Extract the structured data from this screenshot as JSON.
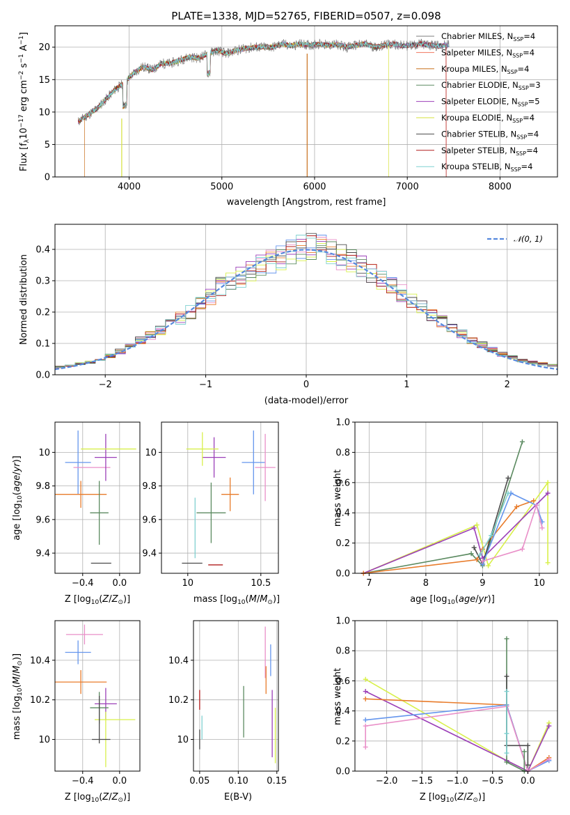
{
  "chart_data": [
    {
      "type": "line",
      "title": "PLATE=1338, MJD=52765, FIBERID=0507, z=0.098",
      "xlabel": "wavelength [Angstrom, rest frame]",
      "ylabel": "Flux [f_λ10^-17 erg cm^-2 s^-1 A^-1]",
      "xlim": [
        3200,
        8620
      ],
      "ylim": [
        0,
        23.3
      ],
      "xticks": [
        4000,
        5000,
        6000,
        7000,
        8000
      ],
      "yticks": [
        0,
        5,
        10,
        15,
        20
      ],
      "legend_position": "right",
      "series": [
        {
          "name": "Chabrier MILES, N_SSP=4",
          "color": "#7e7e7e"
        },
        {
          "name": "Salpeter MILES, N_SSP=4",
          "color": "#f1755e"
        },
        {
          "name": "Kroupa MILES, N_SSP=4",
          "color": "#c9711d"
        },
        {
          "name": "Chabrier ELODIE, N_SSP=3",
          "color": "#5b8a60"
        },
        {
          "name": "Salpeter ELODIE, N_SSP=5",
          "color": "#9b3fb8"
        },
        {
          "name": "Kroupa ELODIE, N_SSP=4",
          "color": "#d6e23a"
        },
        {
          "name": "Chabrier STELIB, N_SSP=4",
          "color": "#4a4a4a"
        },
        {
          "name": "Salpeter STELIB, N_SSP=4",
          "color": "#b11b1b"
        },
        {
          "name": "Kroupa STELIB, N_SSP=4",
          "color": "#7fd0d0"
        }
      ],
      "spectrum_wavelength": [
        3450,
        3550,
        3650,
        3750,
        3850,
        3950,
        4050,
        4150,
        4250,
        4350,
        4450,
        4550,
        4650,
        4750,
        4850,
        4950,
        5050,
        5150,
        5250,
        5350,
        5450,
        5550,
        5650,
        5750,
        5850,
        5950,
        6050,
        6150,
        6250,
        6350,
        6450,
        6550,
        6650,
        6750,
        6850,
        6950,
        7050,
        7150,
        7250,
        7350,
        7450
      ],
      "spectrum_flux": [
        8.5,
        9.5,
        10.5,
        12.0,
        13.5,
        14.5,
        16.0,
        17.0,
        16.5,
        17.5,
        17.5,
        18.0,
        18.5,
        18.3,
        19.0,
        19.5,
        19.0,
        19.5,
        19.8,
        20.0,
        20.0,
        20.0,
        20.5,
        20.2,
        20.5,
        20.3,
        20.5,
        20.3,
        20.4,
        20.0,
        20.3,
        20.5,
        20.0,
        20.3,
        20.5,
        20.2,
        20.3,
        20.5,
        20.3,
        20.2,
        20.4
      ]
    },
    {
      "type": "histogram",
      "xlabel": "(data-model)/error",
      "ylabel": "Normed distribution",
      "xlim": [
        -2.5,
        2.5
      ],
      "ylim": [
        0,
        0.48
      ],
      "xticks": [
        -2,
        -1,
        0,
        1,
        2
      ],
      "yticks": [
        0.0,
        0.1,
        0.2,
        0.3,
        0.4
      ],
      "legend": "𝒩(0, 1)",
      "legend_position": "top-right",
      "bin_centers": [
        -2.45,
        -2.35,
        -2.25,
        -2.15,
        -2.05,
        -1.95,
        -1.85,
        -1.75,
        -1.65,
        -1.55,
        -1.45,
        -1.35,
        -1.25,
        -1.15,
        -1.05,
        -0.95,
        -0.85,
        -0.75,
        -0.65,
        -0.55,
        -0.45,
        -0.35,
        -0.25,
        -0.15,
        -0.05,
        0.05,
        0.15,
        0.25,
        0.35,
        0.45,
        0.55,
        0.65,
        0.75,
        0.85,
        0.95,
        1.05,
        1.15,
        1.25,
        1.35,
        1.45,
        1.55,
        1.65,
        1.75,
        1.85,
        1.95,
        2.05,
        2.15,
        2.25,
        2.35,
        2.45
      ],
      "densities": [
        0.025,
        0.03,
        0.035,
        0.04,
        0.05,
        0.06,
        0.075,
        0.09,
        0.11,
        0.125,
        0.14,
        0.16,
        0.18,
        0.2,
        0.225,
        0.25,
        0.28,
        0.295,
        0.31,
        0.33,
        0.35,
        0.36,
        0.375,
        0.39,
        0.405,
        0.41,
        0.405,
        0.395,
        0.375,
        0.36,
        0.345,
        0.325,
        0.305,
        0.28,
        0.26,
        0.24,
        0.215,
        0.19,
        0.17,
        0.15,
        0.13,
        0.11,
        0.095,
        0.08,
        0.065,
        0.055,
        0.045,
        0.04,
        0.035,
        0.03
      ]
    },
    {
      "type": "errorbar",
      "xlabel": "Z [log10(Z/Z⊙)]",
      "ylabel": "age [log10(age/yr)]",
      "xlim": [
        -0.7,
        0.22
      ],
      "ylim": [
        9.28,
        10.18
      ],
      "xticks": [
        -0.4,
        0.0
      ],
      "xtick_labels": [
        "−0.4",
        "0.0"
      ],
      "yticks": [
        9.4,
        9.6,
        9.8,
        10.0
      ],
      "points": [
        {
          "x": -0.45,
          "y": 9.94,
          "xerr": 0.14,
          "yerr": 0.19,
          "color": "#6495ed"
        },
        {
          "x": -0.3,
          "y": 9.91,
          "xerr": 0.2,
          "yerr": 0.0,
          "color": "#e98fc8"
        },
        {
          "x": -0.42,
          "y": 9.75,
          "xerr": 0.28,
          "yerr": 0.08,
          "color": "#e87b2a"
        },
        {
          "x": -0.15,
          "y": 9.97,
          "xerr": 0.12,
          "yerr": 0.14,
          "color": "#9b3fb8"
        },
        {
          "x": -0.12,
          "y": 10.02,
          "xerr": 0.3,
          "yerr": 0.0,
          "color": "#d8f04a"
        },
        {
          "x": -0.22,
          "y": 9.64,
          "xerr": 0.1,
          "yerr": 0.19,
          "color": "#5b8a60"
        },
        {
          "x": -0.2,
          "y": 9.34,
          "xerr": 0.11,
          "yerr": 0.0,
          "color": "#4a4a4a"
        }
      ]
    },
    {
      "type": "errorbar",
      "xlabel": "mass [log10(M/M⊙)]",
      "ylabel": "",
      "xlim": [
        9.82,
        10.62
      ],
      "ylim": [
        9.28,
        10.18
      ],
      "xticks": [
        10.0,
        10.5
      ],
      "yticks": [
        9.4,
        9.6,
        9.8,
        10.0
      ],
      "points": [
        {
          "x": 10.45,
          "y": 9.94,
          "xerr": 0.08,
          "yerr": 0.19,
          "color": "#6495ed"
        },
        {
          "x": 10.53,
          "y": 9.91,
          "xerr": 0.07,
          "yerr": 0.2,
          "color": "#e98fc8"
        },
        {
          "x": 10.29,
          "y": 9.75,
          "xerr": 0.06,
          "yerr": 0.1,
          "color": "#e87b2a"
        },
        {
          "x": 10.18,
          "y": 9.97,
          "xerr": 0.08,
          "yerr": 0.12,
          "color": "#9b3fb8"
        },
        {
          "x": 10.1,
          "y": 10.02,
          "xerr": 0.11,
          "yerr": 0.1,
          "color": "#d8f04a"
        },
        {
          "x": 10.16,
          "y": 9.64,
          "xerr": 0.1,
          "yerr": 0.18,
          "color": "#5b8a60"
        },
        {
          "x": 10.03,
          "y": 9.34,
          "xerr": 0.07,
          "yerr": 0.0,
          "color": "#4a4a4a"
        },
        {
          "x": 10.19,
          "y": 9.33,
          "xerr": 0.05,
          "yerr": 0.0,
          "color": "#b11b1b"
        },
        {
          "x": 10.05,
          "y": 9.55,
          "xerr": 0.0,
          "yerr": 0.18,
          "color": "#7fd0d0"
        }
      ]
    },
    {
      "type": "line",
      "xlabel": "age [log10(age/yr)]",
      "ylabel": "mass weight",
      "xlim": [
        6.75,
        10.32
      ],
      "ylim": [
        0,
        1.0
      ],
      "xticks": [
        7,
        8,
        9,
        10
      ],
      "yticks": [
        0.0,
        0.2,
        0.4,
        0.6,
        0.8,
        1.0
      ],
      "series": [
        {
          "color": "#5b8a60",
          "x": [
            6.9,
            8.8,
            9.0,
            9.7
          ],
          "y": [
            0.0,
            0.13,
            0.05,
            0.87
          ]
        },
        {
          "color": "#d8f04a",
          "x": [
            6.9,
            8.9,
            9.1,
            10.15,
            10.15
          ],
          "y": [
            0.0,
            0.32,
            0.05,
            0.6,
            0.07
          ]
        },
        {
          "color": "#9b3fb8",
          "x": [
            6.9,
            8.85,
            9.0,
            10.15
          ],
          "y": [
            0.0,
            0.3,
            0.1,
            0.53
          ]
        },
        {
          "color": "#e87b2a",
          "x": [
            6.9,
            8.9,
            9.0,
            9.6,
            9.9
          ],
          "y": [
            0.0,
            0.09,
            0.16,
            0.44,
            0.48
          ]
        },
        {
          "color": "#4a4a4a",
          "x": [
            8.85,
            9.0,
            9.45
          ],
          "y": [
            0.17,
            0.06,
            0.63
          ]
        },
        {
          "color": "#6495ed",
          "x": [
            9.0,
            9.5,
            9.95,
            10.05
          ],
          "y": [
            0.06,
            0.53,
            0.45,
            0.34
          ]
        },
        {
          "color": "#e98fc8",
          "x": [
            9.0,
            9.7,
            9.95,
            10.05
          ],
          "y": [
            0.08,
            0.16,
            0.45,
            0.3
          ]
        },
        {
          "color": "#7fd0d0",
          "x": [
            8.95,
            9.15,
            9.45
          ],
          "y": [
            0.12,
            0.25,
            0.53
          ]
        }
      ]
    },
    {
      "type": "errorbar",
      "xlabel": "Z [log10(Z/Z⊙)]",
      "ylabel": "mass [log10(M/M⊙)]",
      "xlim": [
        -0.7,
        0.22
      ],
      "ylim": [
        9.84,
        10.6
      ],
      "xticks": [
        -0.4,
        0.0
      ],
      "xtick_labels": [
        "−0.4",
        "0.0"
      ],
      "yticks": [
        10.0,
        10.2,
        10.4
      ],
      "points": [
        {
          "x": -0.45,
          "y": 10.44,
          "xerr": 0.14,
          "yerr": 0.06,
          "color": "#6495ed"
        },
        {
          "x": -0.38,
          "y": 10.53,
          "xerr": 0.2,
          "yerr": 0.05,
          "color": "#e98fc8"
        },
        {
          "x": -0.42,
          "y": 10.29,
          "xerr": 0.28,
          "yerr": 0.06,
          "color": "#e87b2a"
        },
        {
          "x": -0.15,
          "y": 10.18,
          "xerr": 0.12,
          "yerr": 0.08,
          "color": "#9b3fb8"
        },
        {
          "x": -0.05,
          "y": 10.1,
          "xerr": 0.22,
          "yerr": 0.0,
          "color": "#d8f04a"
        },
        {
          "x": -0.15,
          "y": 10.0,
          "xerr": 0.0,
          "yerr": 0.14,
          "color": "#d8f04a"
        },
        {
          "x": -0.22,
          "y": 10.16,
          "xerr": 0.1,
          "yerr": 0.08,
          "color": "#5b8a60"
        },
        {
          "x": -0.2,
          "y": 10.0,
          "xerr": 0.1,
          "yerr": 0.0,
          "color": "#4a4a4a"
        },
        {
          "x": -0.22,
          "y": 10.1,
          "xerr": 0.0,
          "yerr": 0.12,
          "color": "#4a4a4a"
        }
      ]
    },
    {
      "type": "errorbar",
      "xlabel": "E(B-V)",
      "ylabel": "",
      "xlim": [
        0.042,
        0.152
      ],
      "ylim": [
        9.84,
        10.6
      ],
      "xticks": [
        0.05,
        0.1,
        0.15
      ],
      "xtick_labels": [
        "0.05",
        "0.10",
        "0.15"
      ],
      "yticks": [
        10.0,
        10.2,
        10.4
      ],
      "points": [
        {
          "x": 0.05,
          "y": 10.2,
          "xerr": 0.0,
          "yerr": 0.05,
          "color": "#b11b1b"
        },
        {
          "x": 0.05,
          "y": 10.0,
          "xerr": 0.0,
          "yerr": 0.05,
          "color": "#4a4a4a"
        },
        {
          "x": 0.053,
          "y": 10.06,
          "xerr": 0.0,
          "yerr": 0.06,
          "color": "#7fd0d0"
        },
        {
          "x": 0.107,
          "y": 10.14,
          "xerr": 0.0,
          "yerr": 0.13,
          "color": "#5b8a60"
        },
        {
          "x": 0.135,
          "y": 10.44,
          "xerr": 0.0,
          "yerr": 0.13,
          "color": "#e98fc8"
        },
        {
          "x": 0.136,
          "y": 10.3,
          "xerr": 0.0,
          "yerr": 0.07,
          "color": "#e87b2a"
        },
        {
          "x": 0.142,
          "y": 10.4,
          "xerr": 0.0,
          "yerr": 0.08,
          "color": "#6495ed"
        },
        {
          "x": 0.144,
          "y": 10.08,
          "xerr": 0.0,
          "yerr": 0.17,
          "color": "#9b3fb8"
        },
        {
          "x": 0.148,
          "y": 10.02,
          "xerr": 0.0,
          "yerr": 0.14,
          "color": "#d8f04a"
        }
      ]
    },
    {
      "type": "line",
      "xlabel": "Z [log10(Z/Z⊙)]",
      "ylabel": "mass weight",
      "xlim": [
        -2.45,
        0.42
      ],
      "ylim": [
        0,
        1.0
      ],
      "xticks": [
        -2.0,
        -1.5,
        -1.0,
        -0.5,
        0.0
      ],
      "xtick_labels": [
        "−2.0",
        "−1.5",
        "−1.0",
        "−0.5",
        "0.0"
      ],
      "yticks": [
        0.0,
        0.2,
        0.4,
        0.6,
        0.8,
        1.0
      ],
      "series": [
        {
          "color": "#d8f04a",
          "x": [
            -2.3,
            -0.3,
            0.0,
            0.3
          ],
          "y": [
            0.61,
            0.07,
            0.0,
            0.32
          ]
        },
        {
          "color": "#9b3fb8",
          "x": [
            -2.3,
            -0.3,
            0.0,
            0.3
          ],
          "y": [
            0.53,
            0.07,
            0.0,
            0.3
          ]
        },
        {
          "color": "#e87b2a",
          "x": [
            -2.3,
            -0.3,
            0.0,
            0.3
          ],
          "y": [
            0.48,
            0.44,
            0.0,
            0.09
          ]
        },
        {
          "color": "#6495ed",
          "x": [
            -2.3,
            -0.3,
            0.0,
            0.3
          ],
          "y": [
            0.34,
            0.44,
            0.0,
            0.07
          ]
        },
        {
          "color": "#e98fc8",
          "x": [
            -2.3,
            -2.3,
            -0.3,
            0.0,
            0.3
          ],
          "y": [
            0.16,
            0.3,
            0.43,
            0.0,
            0.08
          ]
        },
        {
          "color": "#5b8a60",
          "x": [
            -0.3,
            -0.3,
            -0.05,
            -0.05
          ],
          "y": [
            0.88,
            0.06,
            0.0,
            0.13
          ]
        },
        {
          "color": "#4a4a4a",
          "x": [
            -0.3,
            -0.3,
            0.0,
            0.0
          ],
          "y": [
            0.63,
            0.17,
            0.17,
            0.04
          ]
        },
        {
          "color": "#7fd0d0",
          "x": [
            -0.3,
            -0.3,
            -0.3
          ],
          "y": [
            0.53,
            0.25,
            0.12
          ]
        }
      ]
    }
  ]
}
